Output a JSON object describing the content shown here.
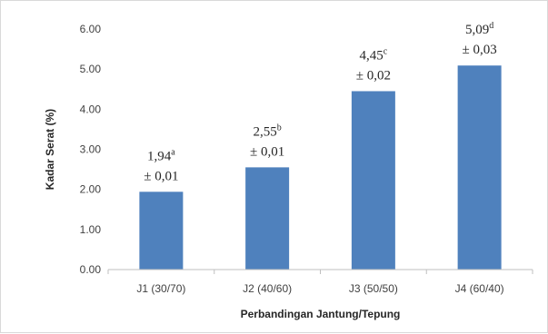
{
  "chart_data": {
    "type": "bar",
    "title": "",
    "xlabel": "Perbandingan Jantung/Tepung",
    "ylabel": "Kadar Serat (%)",
    "categories": [
      "J1 (30/70)",
      "J2 (40/60)",
      "J3 (50/50)",
      "J4 (60/40)"
    ],
    "values": [
      1.94,
      2.55,
      4.45,
      5.09
    ],
    "value_labels": [
      "1,94",
      "2,55",
      "4,45",
      "5,09"
    ],
    "notation_letters": [
      "a",
      "b",
      "c",
      "d"
    ],
    "error_labels": [
      "± 0,01",
      "± 0,01",
      "± 0,02",
      "± 0,03"
    ],
    "ylim": [
      0,
      6
    ],
    "yticks": [
      0,
      1,
      2,
      3,
      4,
      5,
      6
    ],
    "ytick_labels": [
      "0.00",
      "1.00",
      "2.00",
      "3.00",
      "4.00",
      "5.00",
      "6.00"
    ],
    "bar_color": "#4f81bd",
    "grid": false,
    "legend": "none"
  }
}
